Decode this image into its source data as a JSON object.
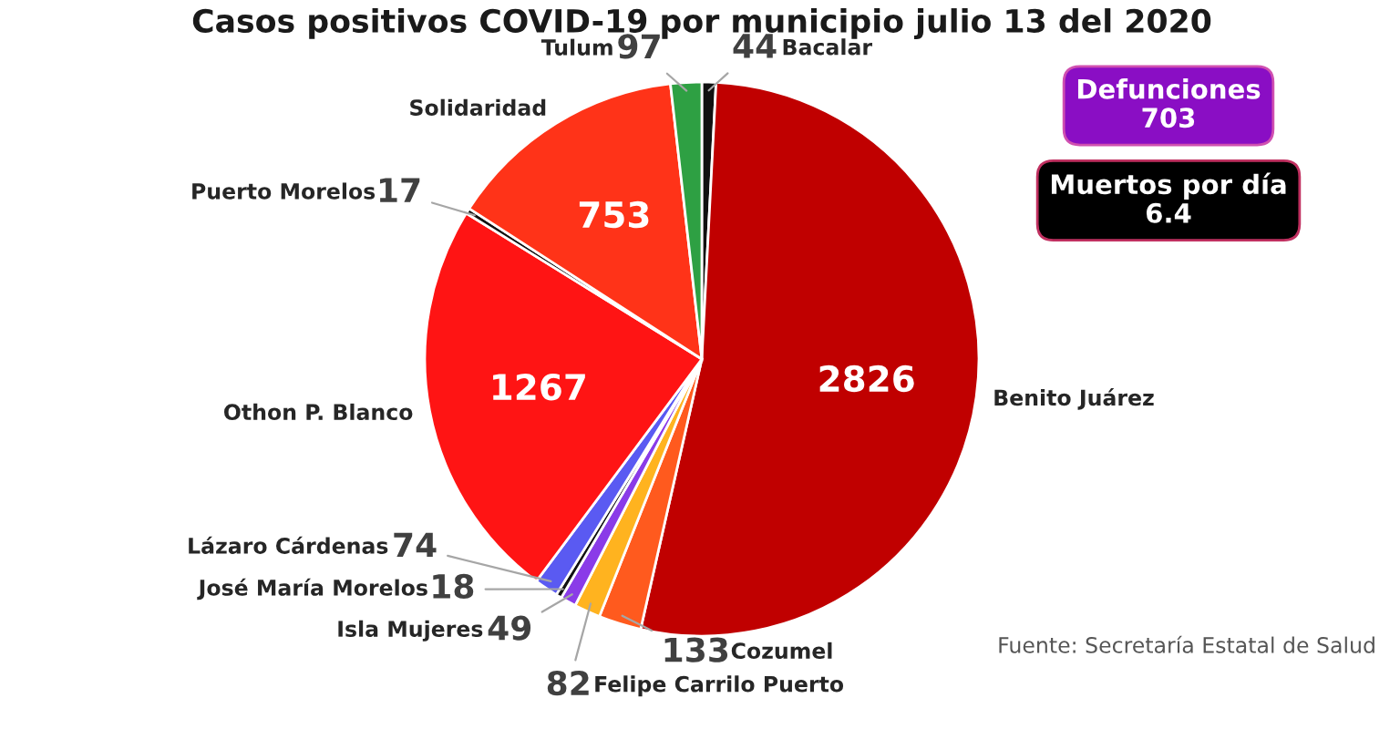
{
  "chart_data": {
    "type": "pie",
    "title": "Casos positivos COVID-19 por municipio julio 13 del 2020",
    "categories": [
      "Bacalar",
      "Benito Juárez",
      "Cozumel",
      "Felipe Carrilo Puerto",
      "Isla Mujeres",
      "José María Morelos",
      "Lázaro Cárdenas",
      "Othon P. Blanco",
      "Puerto Morelos",
      "Solidaridad",
      "Tulum"
    ],
    "values": [
      44,
      2826,
      133,
      82,
      49,
      18,
      74,
      1267,
      17,
      753,
      97
    ],
    "colors": [
      "#111111",
      "#c00000",
      "#ff5a1e",
      "#ffb31f",
      "#8a3be8",
      "#111111",
      "#5a5af2",
      "#ff1414",
      "#111111",
      "#ff3318",
      "#2ea043"
    ],
    "data_labels": true,
    "annotations": [
      "Defunciones\n703",
      "Muertos por día\n6.4",
      "Fuente: Secretaría Estatal de Salud"
    ]
  }
}
